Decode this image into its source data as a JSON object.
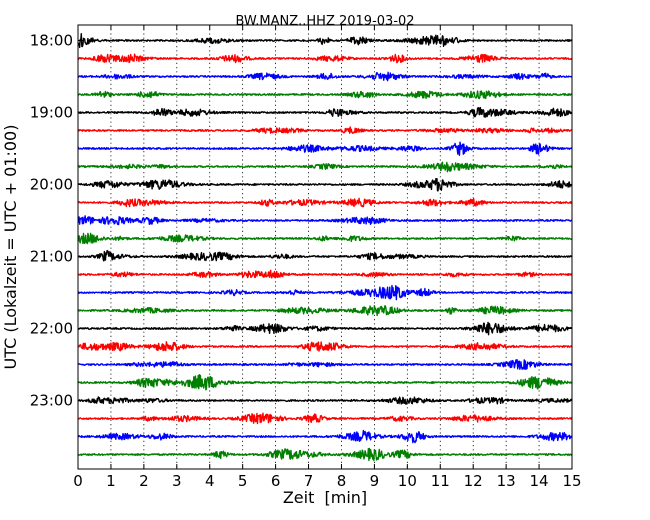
{
  "chart_data": {
    "type": "line",
    "title": "BW.MANZ..HHZ 2019-03-02",
    "xlabel": "Zeit  [min]",
    "ylabel": "UTC (Lokalzeit = UTC + 01:00)",
    "xlim": [
      0,
      15
    ],
    "x_ticks": [
      0,
      1,
      2,
      3,
      4,
      5,
      6,
      7,
      8,
      9,
      10,
      11,
      12,
      13,
      14,
      15
    ],
    "x_tick_labels": [
      "0",
      "1",
      "2",
      "3",
      "4",
      "5",
      "6",
      "7",
      "8",
      "9",
      "10",
      "11",
      "12",
      "13",
      "14",
      "15"
    ],
    "y_tick_labels": [
      "18:00",
      "19:00",
      "20:00",
      "21:00",
      "22:00",
      "23:00"
    ],
    "row_interval_minutes": 15,
    "row_start_times": [
      "18:00",
      "18:15",
      "18:30",
      "18:45",
      "19:00",
      "19:15",
      "19:30",
      "19:45",
      "20:00",
      "20:15",
      "20:30",
      "20:45",
      "21:00",
      "21:15",
      "21:30",
      "21:45",
      "22:00",
      "22:15",
      "22:30",
      "22:45",
      "23:00",
      "23:15",
      "23:30",
      "23:45"
    ],
    "trace_colors": [
      "#000000",
      "#ff0000",
      "#0000ff",
      "#007f00"
    ],
    "vertical_grid": "dotted",
    "legend": "none"
  }
}
